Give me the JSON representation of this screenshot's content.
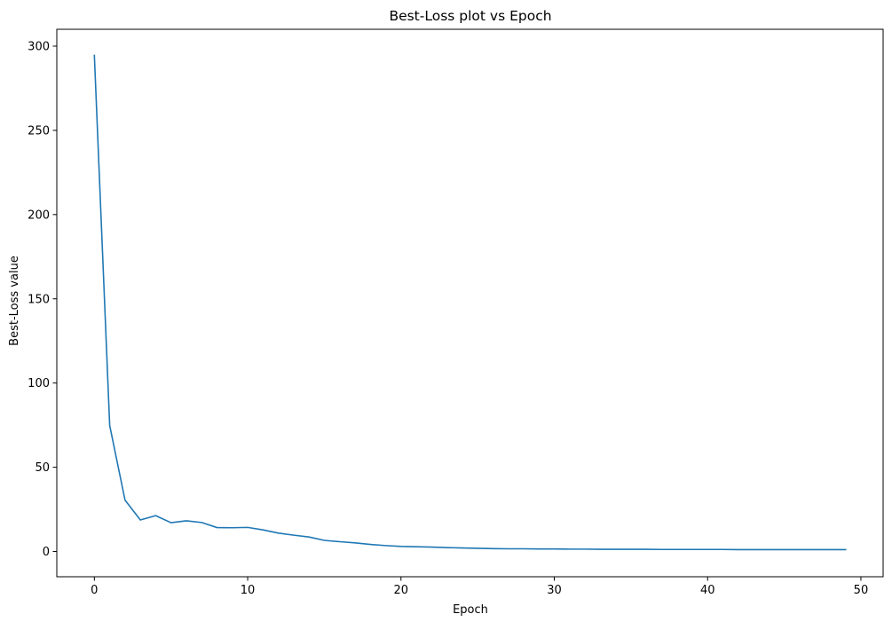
{
  "chart_data": {
    "type": "line",
    "title": "Best-Loss plot vs Epoch",
    "xlabel": "Epoch",
    "ylabel": "Best-Loss value",
    "xlim": [
      -2.45,
      51.45
    ],
    "ylim": [
      -15,
      310
    ],
    "xticks": [
      0,
      10,
      20,
      30,
      40,
      50
    ],
    "yticks": [
      0,
      50,
      100,
      150,
      200,
      250,
      300
    ],
    "grid": false,
    "legend": "none",
    "series": [
      {
        "color": "#1f77b4",
        "x": [
          0,
          1,
          2,
          3,
          4,
          5,
          6,
          7,
          8,
          9,
          10,
          11,
          12,
          13,
          14,
          15,
          16,
          17,
          18,
          19,
          20,
          21,
          22,
          23,
          24,
          25,
          26,
          27,
          28,
          29,
          30,
          31,
          32,
          33,
          34,
          35,
          36,
          37,
          38,
          39,
          40,
          41,
          42,
          43,
          44,
          45,
          46,
          47,
          48,
          49
        ],
        "values": [
          294.5,
          74.8,
          30.5,
          18.7,
          21.3,
          17.1,
          18.2,
          17.2,
          14.2,
          14.1,
          14.3,
          12.8,
          10.9,
          9.7,
          8.6,
          6.6,
          5.8,
          5.1,
          4.2,
          3.5,
          3.0,
          2.8,
          2.6,
          2.3,
          2.1,
          1.9,
          1.7,
          1.6,
          1.6,
          1.5,
          1.5,
          1.4,
          1.4,
          1.3,
          1.3,
          1.3,
          1.3,
          1.2,
          1.2,
          1.2,
          1.2,
          1.2,
          1.1,
          1.1,
          1.1,
          1.1,
          1.1,
          1.1,
          1.1,
          1.1
        ]
      }
    ]
  }
}
